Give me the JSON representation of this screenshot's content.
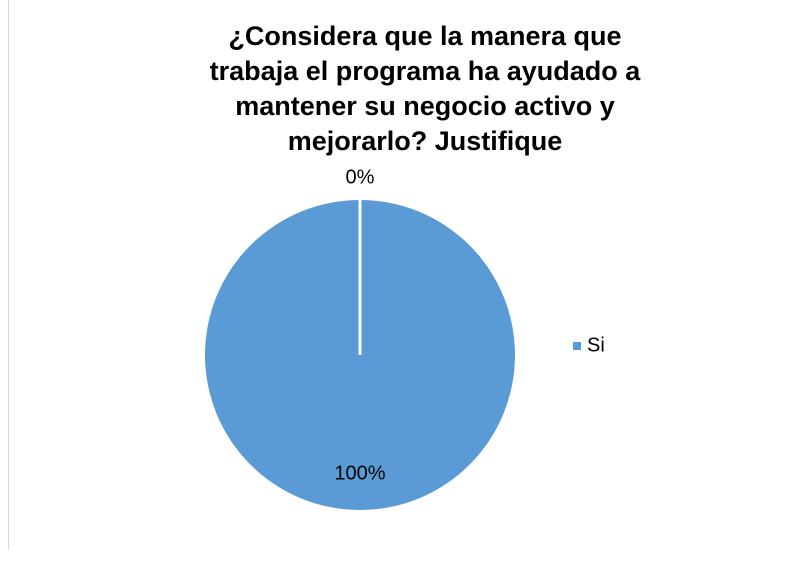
{
  "chart_data": {
    "type": "pie",
    "title": "¿Considera que la manera que trabaja el programa ha ayudado a mantener su negocio activo y mejorarlo? Justifique",
    "categories": [
      "Si",
      null
    ],
    "values": [
      100,
      0
    ],
    "value_labels": [
      "100%",
      "0%"
    ],
    "colors": [
      "#5b9bd5",
      "#ed7d31"
    ],
    "legend": "right"
  }
}
